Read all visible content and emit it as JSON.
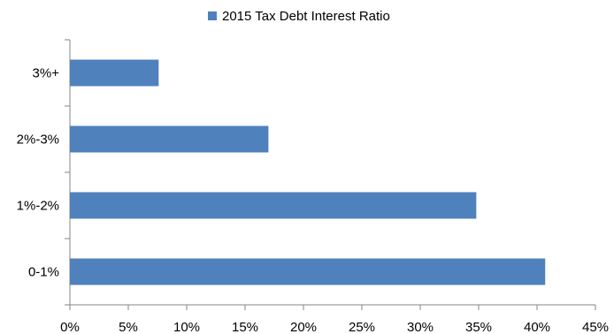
{
  "chart_data": {
    "type": "bar",
    "orientation": "horizontal",
    "categories": [
      "0-1%",
      "1%-2%",
      "2%-3%",
      "3%+"
    ],
    "series": [
      {
        "name": "2015 Tax Debt Interest Ratio",
        "values": [
          40.7,
          34.8,
          17.0,
          7.6
        ],
        "color": "#4f81bd"
      }
    ],
    "xlim": [
      0,
      45
    ],
    "x_ticks": [
      "0%",
      "5%",
      "10%",
      "15%",
      "20%",
      "25%",
      "30%",
      "35%",
      "40%",
      "45%"
    ],
    "grid": false,
    "legend": "top"
  }
}
